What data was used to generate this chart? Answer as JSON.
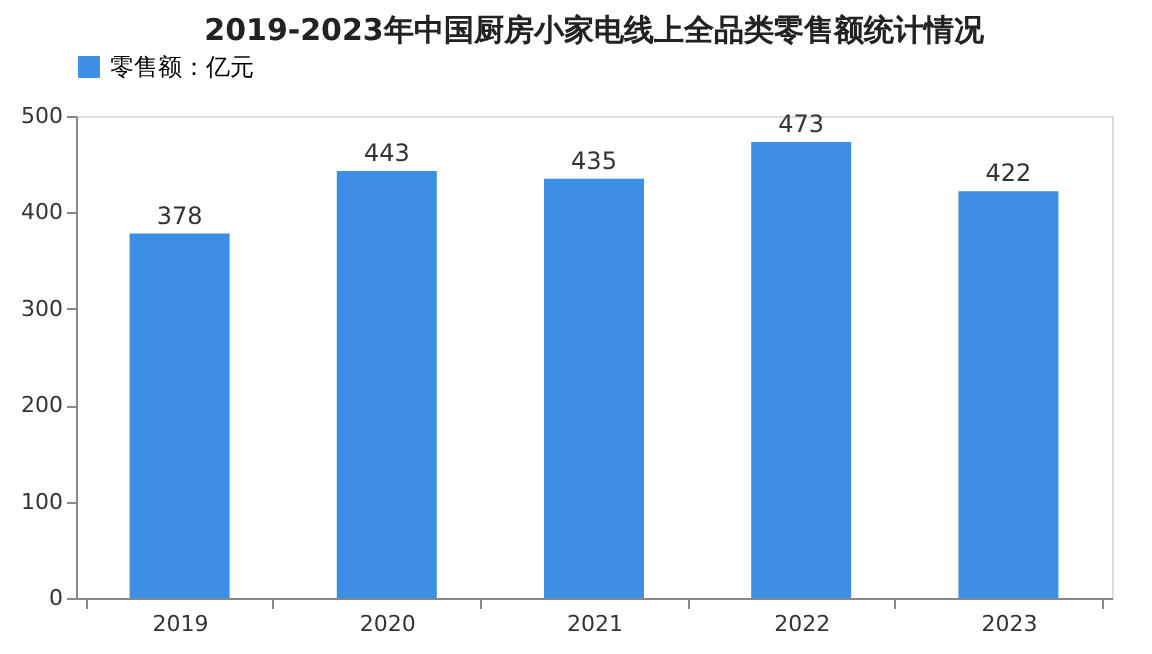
{
  "chart_data": {
    "type": "bar",
    "title": "2019-2023年中国厨房小家电线上全品类零售额统计情况",
    "categories": [
      "2019",
      "2020",
      "2021",
      "2022",
      "2023"
    ],
    "series": [
      {
        "name": "零售额：亿元",
        "color": "#3d8fe6",
        "values": [
          378,
          443,
          435,
          473,
          422
        ]
      }
    ],
    "ylim": [
      0,
      500
    ],
    "yticks": [
      0,
      100,
      200,
      300,
      400,
      500
    ],
    "grid": false,
    "legend": "top",
    "data_labels": true
  }
}
